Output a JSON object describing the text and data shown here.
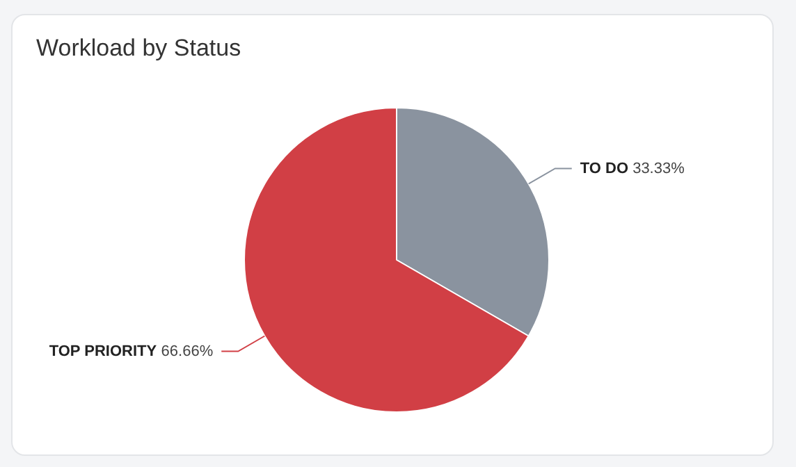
{
  "chart_data": {
    "type": "pie",
    "title": "Workload by Status",
    "categories": [
      "TO DO",
      "TOP PRIORITY"
    ],
    "values": [
      33.33,
      66.66
    ],
    "value_labels": [
      "33.33%",
      "66.66%"
    ],
    "colors": [
      "#8a939f",
      "#d13f45"
    ],
    "legend": false
  }
}
